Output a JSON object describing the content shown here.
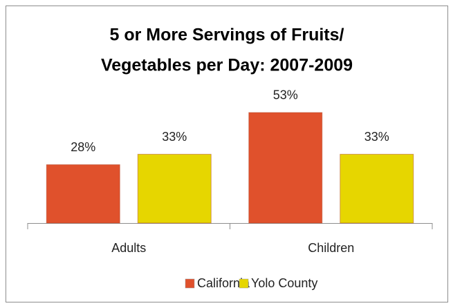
{
  "chart_data": {
    "type": "bar",
    "title": [
      "5 or More Servings of Fruits/",
      "Vegetables per Day: 2007-2009"
    ],
    "categories": [
      "Adults",
      "Children"
    ],
    "series": [
      {
        "name": "California",
        "color": "#e0512c",
        "values": [
          28,
          53
        ],
        "value_labels": [
          "28%",
          "53%"
        ]
      },
      {
        "name": "Yolo County",
        "color": "#e6d600",
        "values": [
          33,
          33
        ],
        "value_labels": [
          "33%",
          "33%"
        ]
      }
    ],
    "legend": "bottom"
  }
}
